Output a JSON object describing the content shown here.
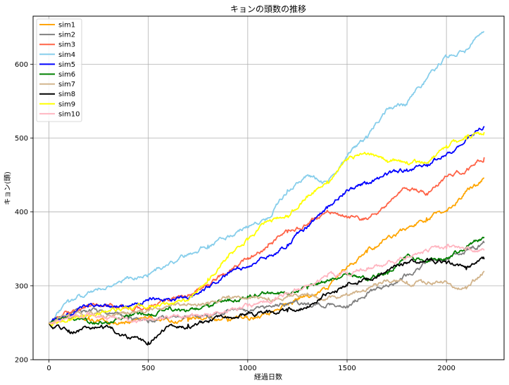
{
  "chart_data": {
    "type": "line",
    "title": "キョンの頭数の推移",
    "xlabel": "経過日数",
    "ylabel": "キョン(頭)",
    "xlim": [
      -80,
      2290
    ],
    "ylim": [
      200,
      665
    ],
    "xticks": [
      0,
      500,
      1000,
      1500,
      2000
    ],
    "yticks": [
      200,
      300,
      400,
      500,
      600
    ],
    "grid": true,
    "legend_position": "top-left",
    "series": [
      {
        "name": "sim1",
        "color": "#FFA500",
        "x": [
          0,
          100,
          200,
          300,
          400,
          500,
          600,
          700,
          800,
          900,
          1000,
          1100,
          1200,
          1300,
          1400,
          1500,
          1600,
          1700,
          1800,
          1900,
          2000,
          2100,
          2190
        ],
        "y": [
          250,
          262,
          258,
          248,
          252,
          256,
          254,
          252,
          258,
          252,
          256,
          262,
          276,
          288,
          296,
          326,
          345,
          365,
          378,
          392,
          402,
          428,
          446
        ]
      },
      {
        "name": "sim2",
        "color": "#808080",
        "x": [
          0,
          100,
          200,
          300,
          400,
          500,
          600,
          700,
          800,
          900,
          1000,
          1100,
          1200,
          1300,
          1400,
          1500,
          1600,
          1700,
          1800,
          1900,
          2000,
          2100,
          2190
        ],
        "y": [
          250,
          262,
          266,
          262,
          255,
          250,
          256,
          258,
          262,
          268,
          266,
          272,
          276,
          275,
          275,
          273,
          290,
          300,
          315,
          332,
          335,
          348,
          358
        ]
      },
      {
        "name": "sim3",
        "color": "#FF6347",
        "x": [
          0,
          100,
          200,
          300,
          400,
          500,
          600,
          700,
          800,
          900,
          1000,
          1100,
          1200,
          1300,
          1400,
          1500,
          1600,
          1700,
          1800,
          1900,
          2000,
          2100,
          2190
        ],
        "y": [
          250,
          264,
          272,
          274,
          270,
          268,
          280,
          288,
          302,
          318,
          338,
          352,
          372,
          382,
          402,
          392,
          390,
          410,
          432,
          425,
          448,
          456,
          474
        ]
      },
      {
        "name": "sim4",
        "color": "#87CEEB",
        "x": [
          0,
          100,
          200,
          300,
          400,
          500,
          600,
          700,
          800,
          900,
          1000,
          1100,
          1200,
          1300,
          1400,
          1500,
          1600,
          1700,
          1800,
          1900,
          2000,
          2100,
          2190
        ],
        "y": [
          250,
          278,
          292,
          300,
          310,
          316,
          328,
          342,
          355,
          368,
          380,
          392,
          430,
          450,
          440,
          475,
          500,
          540,
          545,
          580,
          610,
          620,
          644
        ]
      },
      {
        "name": "sim5",
        "color": "#0000FF",
        "x": [
          0,
          100,
          200,
          300,
          400,
          500,
          600,
          700,
          800,
          900,
          1000,
          1100,
          1200,
          1300,
          1400,
          1500,
          1600,
          1700,
          1800,
          1900,
          2000,
          2100,
          2190
        ],
        "y": [
          250,
          262,
          275,
          272,
          270,
          280,
          283,
          282,
          298,
          318,
          325,
          340,
          356,
          380,
          405,
          430,
          440,
          450,
          458,
          464,
          478,
          498,
          516
        ]
      },
      {
        "name": "sim6",
        "color": "#008000",
        "x": [
          0,
          100,
          200,
          300,
          400,
          500,
          600,
          700,
          800,
          900,
          1000,
          1100,
          1200,
          1300,
          1400,
          1500,
          1600,
          1700,
          1800,
          1900,
          2000,
          2100,
          2190
        ],
        "y": [
          250,
          256,
          250,
          250,
          258,
          262,
          268,
          266,
          275,
          282,
          286,
          292,
          288,
          296,
          308,
          315,
          310,
          320,
          340,
          332,
          338,
          352,
          366
        ]
      },
      {
        "name": "sim7",
        "color": "#D2B48C",
        "x": [
          0,
          100,
          200,
          300,
          400,
          500,
          600,
          700,
          800,
          900,
          1000,
          1100,
          1200,
          1300,
          1400,
          1500,
          1600,
          1700,
          1800,
          1900,
          2000,
          2100,
          2190
        ],
        "y": [
          250,
          262,
          262,
          260,
          262,
          266,
          272,
          276,
          278,
          284,
          282,
          280,
          285,
          290,
          282,
          288,
          296,
          308,
          306,
          302,
          306,
          296,
          320
        ]
      },
      {
        "name": "sim8",
        "color": "#000000",
        "x": [
          0,
          100,
          200,
          300,
          400,
          500,
          600,
          700,
          800,
          900,
          1000,
          1100,
          1200,
          1300,
          1400,
          1500,
          1600,
          1700,
          1800,
          1900,
          2000,
          2100,
          2190
        ],
        "y": [
          250,
          240,
          244,
          244,
          230,
          224,
          245,
          248,
          252,
          258,
          262,
          264,
          265,
          272,
          290,
          300,
          308,
          320,
          330,
          336,
          330,
          322,
          336
        ]
      },
      {
        "name": "sim9",
        "color": "#FFFF00",
        "x": [
          0,
          100,
          200,
          300,
          400,
          500,
          600,
          700,
          800,
          900,
          1000,
          1100,
          1200,
          1300,
          1400,
          1500,
          1600,
          1700,
          1800,
          1900,
          2000,
          2100,
          2190
        ],
        "y": [
          250,
          255,
          260,
          266,
          268,
          270,
          275,
          280,
          310,
          338,
          362,
          388,
          395,
          420,
          442,
          472,
          478,
          470,
          468,
          466,
          490,
          498,
          508
        ]
      },
      {
        "name": "sim10",
        "color": "#FFB6C1",
        "x": [
          0,
          100,
          200,
          300,
          400,
          500,
          600,
          700,
          800,
          900,
          1000,
          1100,
          1200,
          1300,
          1400,
          1500,
          1600,
          1700,
          1800,
          1900,
          2000,
          2100,
          2190
        ],
        "y": [
          250,
          258,
          260,
          256,
          252,
          254,
          256,
          258,
          262,
          266,
          272,
          280,
          290,
          300,
          312,
          318,
          324,
          330,
          340,
          348,
          350,
          352,
          348
        ]
      }
    ]
  }
}
